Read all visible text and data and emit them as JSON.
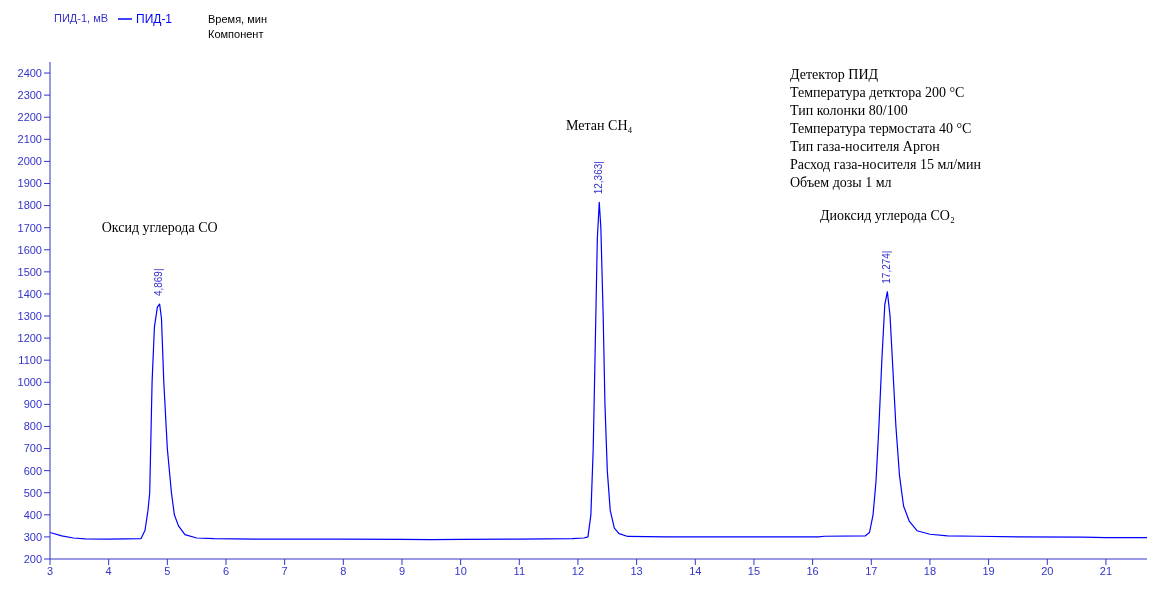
{
  "chart_data": {
    "type": "line",
    "ylabel": "ПИД-1, мВ",
    "xlabel": "Время, мин",
    "xlim": [
      3,
      21.7
    ],
    "xticks": [
      3,
      4,
      5,
      6,
      7,
      8,
      9,
      10,
      11,
      12,
      13,
      14,
      15,
      16,
      17,
      18,
      19,
      20,
      21
    ],
    "ylim": [
      200,
      2450
    ],
    "yticks": [
      200,
      300,
      400,
      500,
      600,
      700,
      800,
      900,
      1000,
      1100,
      1200,
      1300,
      1400,
      1500,
      1600,
      1700,
      1800,
      1900,
      2000,
      2100,
      2200,
      2300,
      2400
    ],
    "grid": false,
    "legend": "top left",
    "marker": "none",
    "line_style": "solid",
    "series": [
      {
        "name": "ПИД-1",
        "color": "#0000ff",
        "x": [
          3.0,
          3.2,
          3.4,
          3.6,
          4.0,
          4.55,
          4.62,
          4.67,
          4.7,
          4.74,
          4.78,
          4.83,
          4.869,
          4.9,
          4.94,
          5.0,
          5.07,
          5.12,
          5.19,
          5.3,
          5.5,
          5.8,
          6.5,
          8.0,
          9.0,
          9.5,
          10.0,
          11.0,
          11.9,
          12.1,
          12.17,
          12.22,
          12.26,
          12.29,
          12.33,
          12.363,
          12.39,
          12.43,
          12.46,
          12.5,
          12.55,
          12.62,
          12.7,
          12.85,
          13.5,
          16.1,
          16.2,
          16.9,
          16.97,
          17.03,
          17.08,
          17.13,
          17.18,
          17.23,
          17.274,
          17.32,
          17.37,
          17.42,
          17.48,
          17.55,
          17.65,
          17.78,
          18.0,
          18.3,
          18.8,
          19.5,
          20.6,
          21.0,
          21.7
        ],
        "values": [
          320,
          305,
          295,
          291,
          290,
          292,
          330,
          420,
          500,
          1000,
          1250,
          1340,
          1354,
          1290,
          1000,
          700,
          500,
          400,
          350,
          310,
          295,
          292,
          290,
          290,
          289,
          288,
          289,
          290,
          292,
          295,
          300,
          400,
          700,
          1100,
          1650,
          1815,
          1700,
          1300,
          900,
          600,
          420,
          340,
          315,
          302,
          300,
          300,
          303,
          305,
          320,
          400,
          550,
          800,
          1100,
          1350,
          1410,
          1300,
          1050,
          800,
          580,
          440,
          370,
          328,
          312,
          305,
          303,
          300,
          299,
          297,
          297
        ]
      }
    ],
    "annotations": [
      "Компонент",
      "Детектор ПИД",
      "Температура деткторa 200 °C",
      "Тип колонки 80/100",
      "Температура термостата 40 °C",
      "Тип газа-носителя Аргон",
      "Расход газа-носителя 15 мл/мин",
      "Объем дозы 1 мл",
      {
        "text": "4,869|",
        "x": 4.869,
        "y": 1354
      },
      {
        "text": "12,363|",
        "x": 12.363,
        "y": 1815
      },
      {
        "text": "17,274|",
        "x": 17.274,
        "y": 1410
      },
      "Оксид углерода CO",
      "Метан CH₄",
      "Диоксид углерода CO₂"
    ]
  }
}
